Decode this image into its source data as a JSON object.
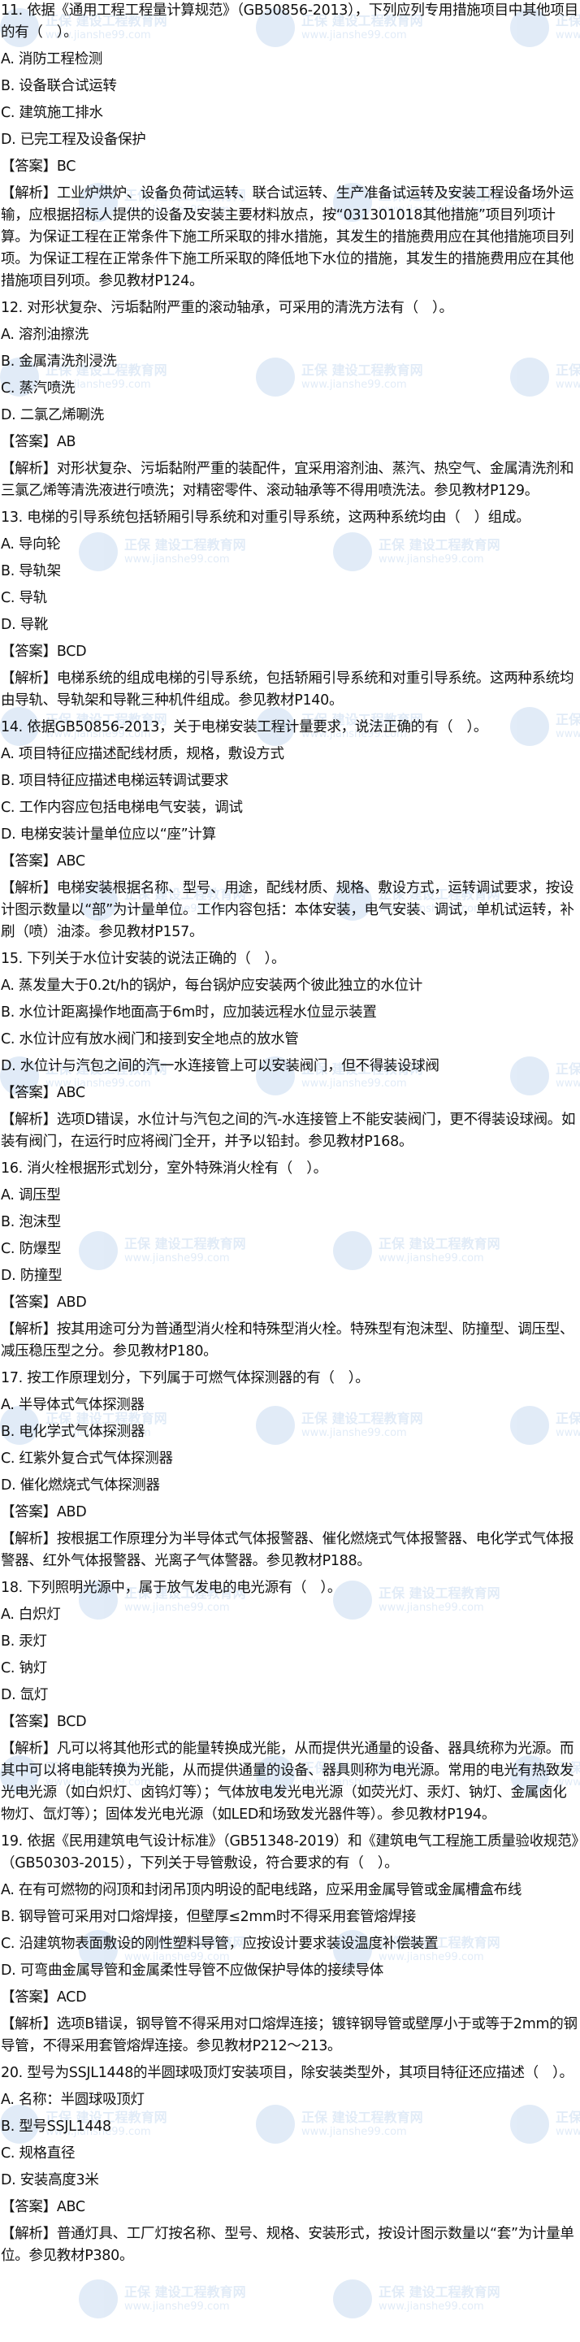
{
  "labels": {
    "answer_prefix": "【答案】",
    "analysis_prefix": "【解析】"
  },
  "watermark": {
    "brand": "正保 建设工程教育网",
    "url": "www.jianshe99.com",
    "color": "#1e6fc8"
  },
  "questions": [
    {
      "stem": "11. 依据《通用工程工程量计算规范》（GB50856-2013），下列应列专用措施项目中其他项目的有（　）。",
      "options": [
        "A. 消防工程检测",
        "B. 设备联合试运转",
        "C. 建筑施工排水",
        "D. 已完工程及设备保护"
      ],
      "answer": "BC",
      "analysis": "工业炉烘炉、设备负荷试运转、联合试运转、生产准备试运转及安装工程设备场外运输，应根据招标人提供的设备及安装主要材料放点，按“031301018其他措施”项目列项计算。为保证工程在正常条件下施工所采取的排水措施，其发生的措施费用应在其他措施项目列项。为保证工程在正常条件下施工所采取的降低地下水位的措施，其发生的措施费用应在其他措施项目列项。参见教材P124。"
    },
    {
      "stem": "12. 对形状复杂、污垢黏附严重的滚动轴承，可采用的清洗方法有（　）。",
      "options": [
        "A. 溶剂油擦洗",
        "B. 金属清洗剂浸洗",
        "C. 蒸汽喷洗",
        "D. 二氯乙烯唰洗"
      ],
      "answer": "AB",
      "analysis": "对形状复杂、污垢黏附严重的装配件，宜采用溶剂油、蒸汽、热空气、金属清洗剂和三氯乙烯等清洗液进行喷洗；对精密零件、滚动轴承等不得用喷洗法。参见教材P129。"
    },
    {
      "stem": "13. 电梯的引导系统包括轿厢引导系统和对重引导系统，这两种系统均由（　）组成。",
      "options": [
        "A. 导向轮",
        "B. 导轨架",
        "C. 导轨",
        "D. 导靴"
      ],
      "answer": "BCD",
      "analysis": "电梯系统的组成电梯的引导系统，包括轿厢引导系统和对重引导系统。这两种系统均由导轨、导轨架和导靴三种机件组成。参见教材P140。"
    },
    {
      "stem": "14. 依据GB50856-2013，关于电梯安装工程计量要求，说法正确的有（　）。",
      "options": [
        "A. 项目特征应描述配线材质，规格，敷设方式",
        "B. 项目特征应描述电梯运转调试要求",
        "C. 工作内容应包括电梯电气安装，调试",
        "D. 电梯安装计量单位应以“座”计算"
      ],
      "answer": "ABC",
      "analysis": "电梯安装根据名称、型号、用途，配线材质、规格、敷设方式，运转调试要求，按设计图示数量以“部”为计量单位。工作内容包括：本体安装，电气安装、调试，单机试运转，补刷（喷）油漆。参见教材P157。"
    },
    {
      "stem": "15. 下列关于水位计安装的说法正确的（　）。",
      "options": [
        "A. 蒸发量大于0.2t/h的锅炉，每台锅炉应安装两个彼此独立的水位计",
        "B. 水位计距离操作地面高于6m时，应加装远程水位显示装置",
        "C. 水位计应有放水阀门和接到安全地点的放水管",
        "D. 水位计与汽包之间的汽一水连接管上可以安装阀门，但不得装设球阀"
      ],
      "answer": "ABC",
      "analysis": "选项D错误，水位计与汽包之间的汽-水连接管上不能安装阀门，更不得装设球阀。如装有阀门，在运行时应将阀门全开，并予以铅封。参见教材P168。"
    },
    {
      "stem": "16. 消火栓根据形式划分，室外特殊消火栓有（　）。",
      "options": [
        "A. 调压型",
        "B. 泡沫型",
        "C. 防爆型",
        "D. 防撞型"
      ],
      "answer": "ABD",
      "analysis": "按其用途可分为普通型消火栓和特殊型消火栓。特殊型有泡沫型、防撞型、调压型、减压稳压型之分。参见教材P180。"
    },
    {
      "stem": "17. 按工作原理划分，下列属于可燃气体探测器的有（　）。",
      "options": [
        "A. 半导体式气体探测器",
        "B. 电化学式气体探测器",
        "C. 红紫外复合式气体探测器",
        "D. 催化燃烧式气体探测器"
      ],
      "answer": "ABD",
      "analysis": "按根据工作原理分为半导体式气体报警器、催化燃烧式气体报警器、电化学式气体报警器、红外气体报警器、光离子气体警器。参见教材P188。"
    },
    {
      "stem": "18. 下列照明光源中，属于放气发电的电光源有（　）。",
      "options": [
        "A. 白炽灯",
        "B. 汞灯",
        "C. 钠灯",
        "D. 氙灯"
      ],
      "answer": "BCD",
      "analysis": "凡可以将其他形式的能量转换成光能，从而提供光通量的设备、器具统称为光源。而其中可以将电能转换为光能，从而提供通量的设备、器具则称为电光源。常用的电光有热致发光电光源（如白炽灯、卤钨灯等）；气体放电发光电光源（如荧光灯、汞灯、钠灯、金属卤化物灯、氙灯等）；固体发光电光源（如LED和场致发光器件等）。参见教材P194。"
    },
    {
      "stem": "19. 依据《民用建筑电气设计标准》（GB51348-2019）和《建筑电气工程施工质量验收规范》（GB50303-2015），下列关于导管敷设，符合要求的有（　）。",
      "options": [
        "A. 在有可燃物的闷顶和封闭吊顶内明设的配电线路，应采用金属导管或金属槽盒布线",
        "B. 钢导管可采用对口熔焊接，但壁厚≤2mm时不得采用套管熔焊接",
        "C. 沿建筑物表面敷设的刚性塑料导管，应按设计要求装设温度补偿装置",
        "D. 可弯曲金属导管和金属柔性导管不应做保护导体的接续导体"
      ],
      "answer": "ACD",
      "analysis": "选项B错误，钢导管不得采用对口熔焊连接；镀锌钢导管或壁厚小于或等于2mm的钢导管，不得采用套管熔焊连接。参见教材P212～213。"
    },
    {
      "stem": "20. 型号为SSJL1448的半圆球吸顶灯安装项目，除安装类型外，其项目特征还应描述（　）。",
      "options": [
        "A. 名称：半圆球吸顶灯",
        "B. 型号SSJL1448",
        "C. 规格直径",
        "D. 安装高度3米"
      ],
      "answer": "ABC",
      "analysis": "普通灯具、工厂灯按名称、型号、规格、安装形式，按设计图示数量以“套”为计量单位。参见教材P380。"
    }
  ]
}
